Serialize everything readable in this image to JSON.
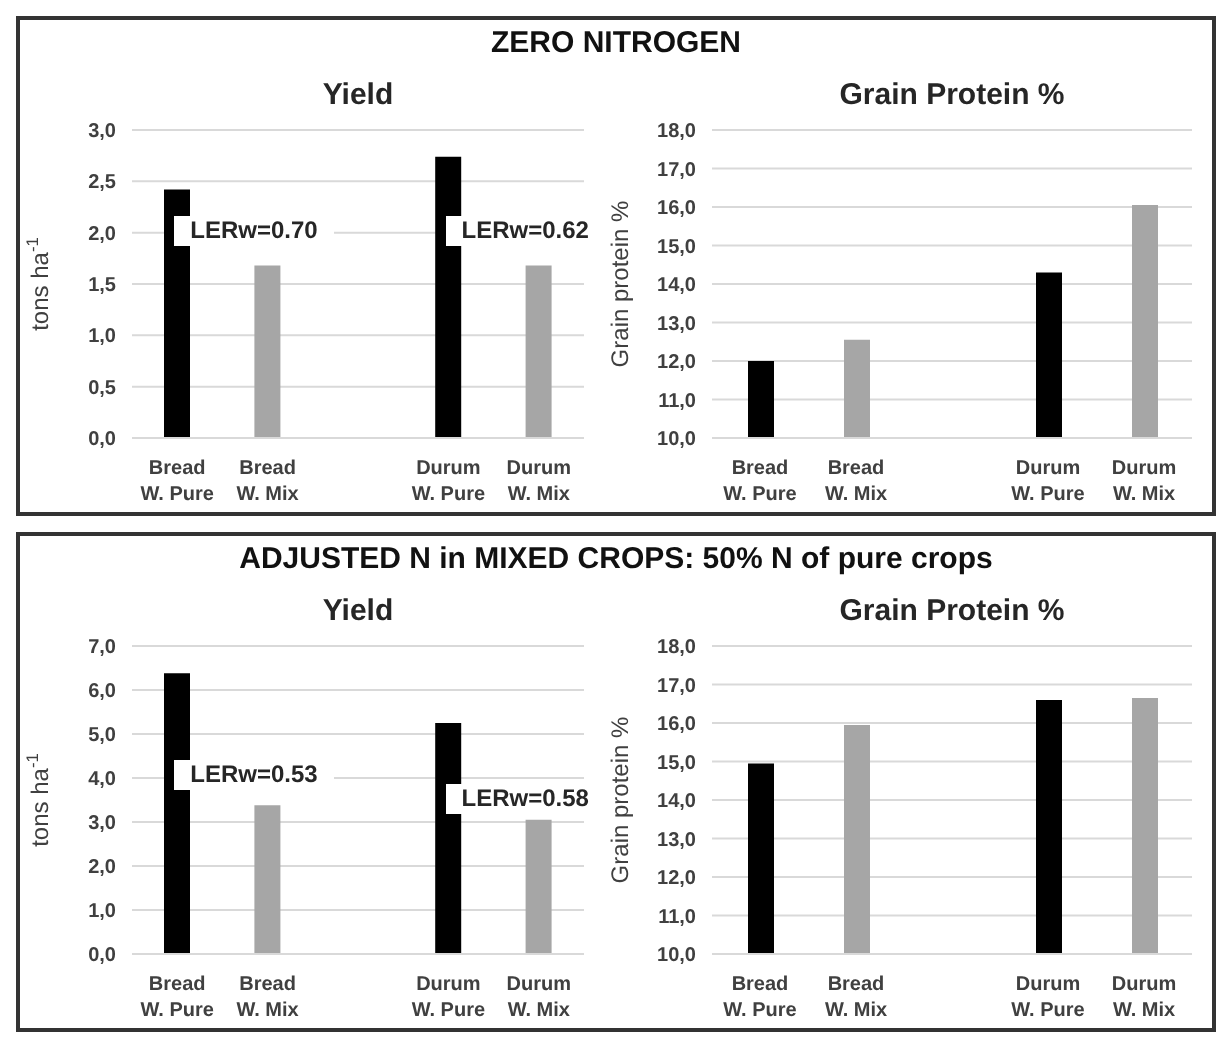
{
  "chart_data": [
    {
      "type": "bar",
      "title": "ZERO NITROGEN",
      "subtitle": "Yield",
      "ylabel": "tons ha$^{-1}$",
      "categories": [
        "Bread W. Pure",
        "Bread W. Mix",
        null,
        "Durum W. Pure",
        "Durum W. Mix"
      ],
      "values": [
        2.42,
        1.68,
        null,
        2.74,
        1.68
      ],
      "colors": [
        "#000000",
        "#a6a6a6",
        "#a6a6a6",
        "#000000",
        "#a6a6a6"
      ],
      "ylim": [
        0,
        3
      ],
      "yticks": [
        {
          "value": 0,
          "label": "0,0"
        },
        {
          "value": 0.5,
          "label": "0,5"
        },
        {
          "value": 1,
          "label": "1,0"
        },
        {
          "value": 1.5,
          "label": "1,5"
        },
        {
          "value": 2,
          "label": "2,0"
        },
        {
          "value": 2.5,
          "label": "2,5"
        },
        {
          "value": 3,
          "label": "3,0"
        }
      ],
      "grid": "y",
      "annotations": [
        "LERw=0.70",
        "LERw=0.62"
      ]
    },
    {
      "type": "bar",
      "subtitle": "Grain Protein %",
      "ylabel": "Grain protein %",
      "categories": [
        "Bread W. Pure",
        "Bread W. Mix",
        null,
        "Durum W. Pure",
        "Durum W. Mix"
      ],
      "values": [
        12.0,
        12.55,
        null,
        14.3,
        16.05
      ],
      "colors": [
        "#000000",
        "#a6a6a6",
        "#a6a6a6",
        "#000000",
        "#a6a6a6"
      ],
      "ylim": [
        10,
        18
      ],
      "yticks": [
        {
          "value": 10,
          "label": "10,0"
        },
        {
          "value": 11,
          "label": "11,0"
        },
        {
          "value": 12,
          "label": "12,0"
        },
        {
          "value": 13,
          "label": "13,0"
        },
        {
          "value": 14,
          "label": "14,0"
        },
        {
          "value": 15,
          "label": "15,0"
        },
        {
          "value": 16,
          "label": "16,0"
        },
        {
          "value": 17,
          "label": "17,0"
        },
        {
          "value": 18,
          "label": "18,0"
        }
      ],
      "grid": "y"
    },
    {
      "type": "bar",
      "title": "ADJUSTED N in MIXED CROPS: 50% N of pure crops",
      "subtitle": "Yield",
      "ylabel": "tons ha$^{-1}$",
      "categories": [
        "Bread W. Pure",
        "Bread W. Mix",
        null,
        "Durum W. Pure",
        "Durum W. Mix"
      ],
      "values": [
        6.38,
        3.38,
        null,
        5.25,
        3.05
      ],
      "colors": [
        "#000000",
        "#a6a6a6",
        "#a6a6a6",
        "#000000",
        "#a6a6a6"
      ],
      "ylim": [
        0,
        7
      ],
      "yticks": [
        {
          "value": 0,
          "label": "0,0"
        },
        {
          "value": 1,
          "label": "1,0"
        },
        {
          "value": 2,
          "label": "2,0"
        },
        {
          "value": 3,
          "label": "3,0"
        },
        {
          "value": 4,
          "label": "4,0"
        },
        {
          "value": 5,
          "label": "5,0"
        },
        {
          "value": 6,
          "label": "6,0"
        },
        {
          "value": 7,
          "label": "7,0"
        }
      ],
      "grid": "y",
      "annotations": [
        "LERw=0.53",
        "LERw=0.58"
      ]
    },
    {
      "type": "bar",
      "subtitle": "Grain Protein %",
      "ylabel": "Grain protein %",
      "categories": [
        "Bread W. Pure",
        "Bread W. Mix",
        null,
        "Durum W. Pure",
        "Durum W. Mix"
      ],
      "values": [
        14.95,
        15.95,
        null,
        16.6,
        16.65
      ],
      "colors": [
        "#000000",
        "#a6a6a6",
        "#a6a6a6",
        "#000000",
        "#a6a6a6"
      ],
      "ylim": [
        10,
        18
      ],
      "yticks": [
        {
          "value": 10,
          "label": "10,0"
        },
        {
          "value": 11,
          "label": "11,0"
        },
        {
          "value": 12,
          "label": "12,0"
        },
        {
          "value": 13,
          "label": "13,0"
        },
        {
          "value": 14,
          "label": "14,0"
        },
        {
          "value": 15,
          "label": "15,0"
        },
        {
          "value": 16,
          "label": "16,0"
        },
        {
          "value": 17,
          "label": "17,0"
        },
        {
          "value": 18,
          "label": "18,0"
        }
      ],
      "grid": "y"
    }
  ]
}
